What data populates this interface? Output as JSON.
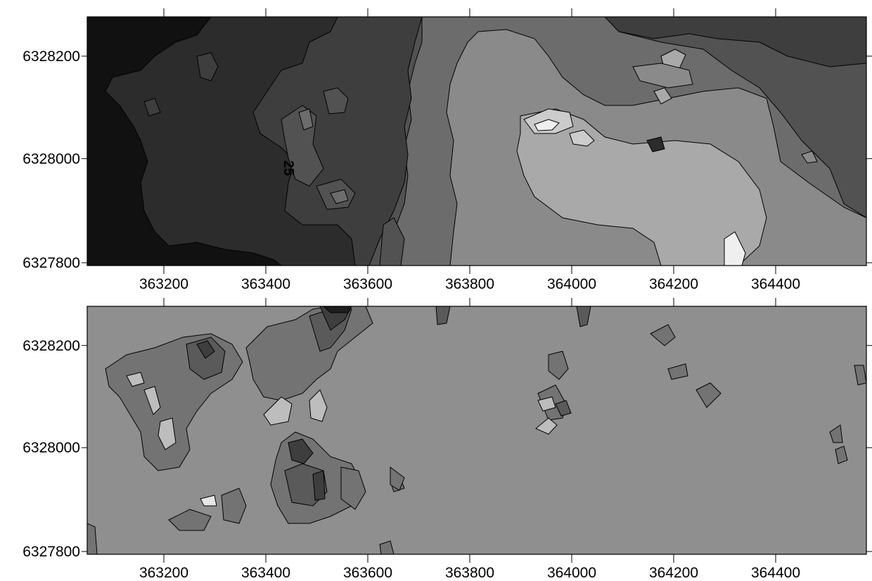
{
  "maps": [
    {
      "name": "top",
      "x_ticks": [
        "363200",
        "363400",
        "363600",
        "363800",
        "364000",
        "364200",
        "364400"
      ],
      "y_ticks": [
        "6328200",
        "6328000",
        "6327800"
      ],
      "contour_label": "25",
      "fill_levels": [
        "#111111",
        "#2c2c2c",
        "#3e3e3e",
        "#525252",
        "#6c6c6c",
        "#8a8a8a",
        "#a9a9a9",
        "#cccccc",
        "#efefef"
      ]
    },
    {
      "name": "bottom",
      "x_ticks": [
        "363200",
        "363400",
        "363600",
        "363800",
        "364000",
        "364200",
        "364400"
      ],
      "y_ticks": [
        "6328200",
        "6328000",
        "6327800"
      ],
      "fill_levels": [
        "#1e1e1e",
        "#3e3e3e",
        "#5a5a5a",
        "#737373",
        "#8f8f8f",
        "#bdbdbd",
        "#e6e6e6"
      ]
    }
  ]
}
